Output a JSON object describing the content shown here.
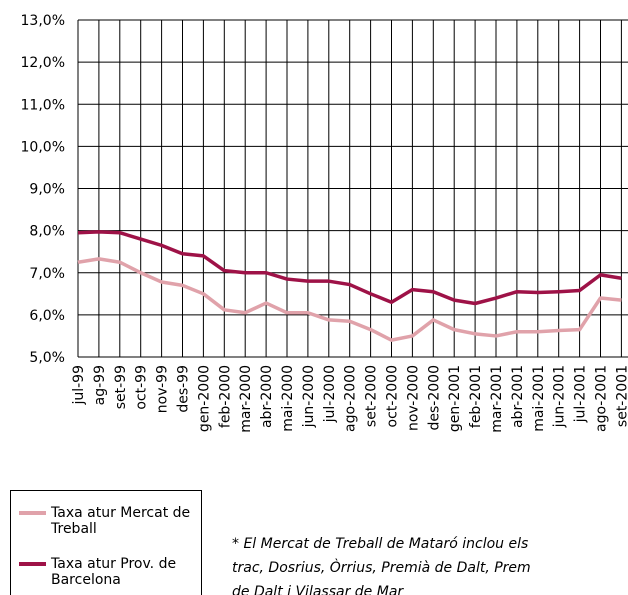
{
  "chart_data": {
    "type": "line",
    "categories": [
      "jul-99",
      "ag-99",
      "set-99",
      "oct-99",
      "nov-99",
      "des-99",
      "gen-2000",
      "feb-2000",
      "mar-2000",
      "abr-2000",
      "mai-2000",
      "jun-2000",
      "jul-2000",
      "ago-2000",
      "set-2000",
      "oct-2000",
      "nov-2000",
      "des-2000",
      "gen-2001",
      "feb-2001",
      "mar-2001",
      "abr-2001",
      "mai-2001",
      "jun-2001",
      "jul-2001",
      "ago-2001",
      "set-2001"
    ],
    "series": [
      {
        "name": "Taxa atur Mercat de Treball",
        "color": "#e0a2aa",
        "values": [
          7.25,
          7.33,
          7.25,
          7.0,
          6.78,
          6.7,
          6.5,
          6.12,
          6.05,
          6.28,
          6.05,
          6.05,
          5.88,
          5.85,
          5.65,
          5.4,
          5.5,
          5.88,
          5.65,
          5.55,
          5.5,
          5.6,
          5.6,
          5.63,
          5.65,
          6.4,
          6.35
        ]
      },
      {
        "name": "Taxa atur Prov. de Barcelona",
        "color": "#9e1247",
        "values": [
          7.95,
          7.97,
          7.95,
          7.8,
          7.65,
          7.45,
          7.4,
          7.05,
          7.0,
          7.0,
          6.85,
          6.8,
          6.8,
          6.72,
          6.5,
          6.3,
          6.6,
          6.55,
          6.35,
          6.27,
          6.4,
          6.55,
          6.53,
          6.55,
          6.58,
          6.95,
          6.87
        ]
      }
    ],
    "ylim": [
      5,
      13
    ],
    "yticks": [
      {
        "value": 5,
        "label": "5,0%"
      },
      {
        "value": 6,
        "label": "6,0%"
      },
      {
        "value": 7,
        "label": "7,0%"
      },
      {
        "value": 8,
        "label": "8,0%"
      },
      {
        "value": 9,
        "label": "9,0%"
      },
      {
        "value": 10,
        "label": "10,0%"
      },
      {
        "value": 11,
        "label": "11,0%"
      },
      {
        "value": 12,
        "label": "12,0%"
      },
      {
        "value": 13,
        "label": "13,0%"
      }
    ],
    "grid": true,
    "legend": "bottom-left",
    "annotations": [
      "* El Mercat de Treball de Mataró inclou els",
      "trac, Dosrius, Òrrius, Premià de Dalt, Prem",
      "de Dalt i Vilassar de Mar"
    ]
  }
}
